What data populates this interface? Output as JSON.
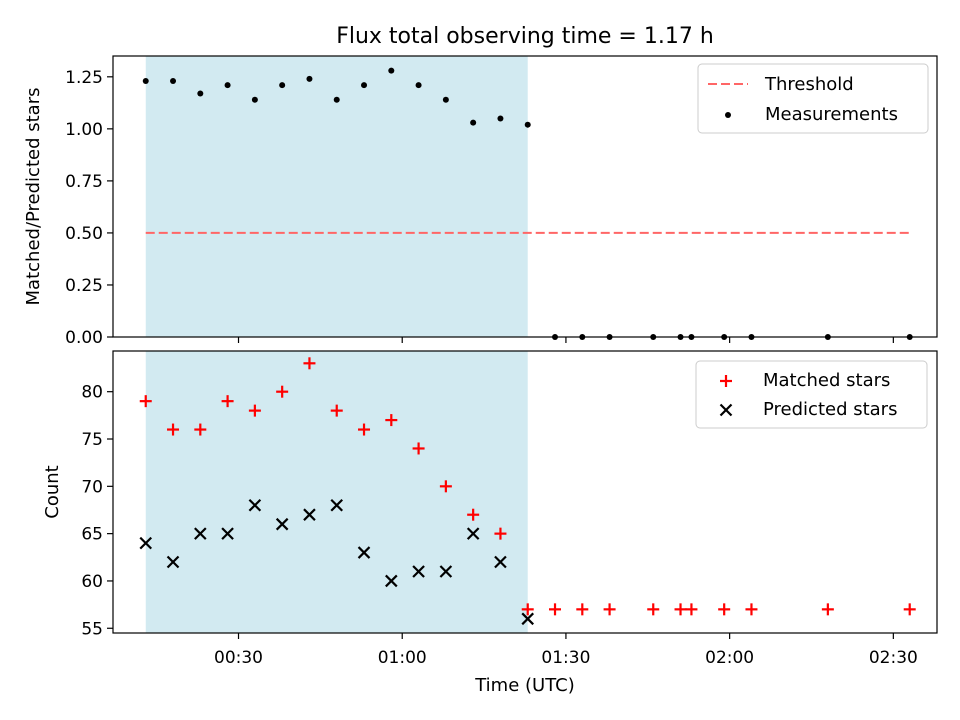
{
  "figure_title": "Flux total observing time = 1.17 h",
  "colors": {
    "shade": "#add8e6",
    "threshold": "#ff6666",
    "measurements": "#000000",
    "matched": "#ff0000",
    "predicted": "#000000"
  },
  "chart_data": [
    {
      "type": "scatter",
      "title": "Flux total observing time = 1.17 h",
      "xlabel": "",
      "ylabel": "Matched/Predicted stars",
      "xlim": [
        "00:07",
        "02:38"
      ],
      "ylim": [
        0,
        1.35
      ],
      "yticks": [
        "0.00",
        "0.25",
        "0.50",
        "0.75",
        "1.00",
        "1.25"
      ],
      "shaded_interval": [
        "00:13",
        "01:23"
      ],
      "legend_position": "upper right",
      "series": [
        {
          "name": "Threshold",
          "style": "dashed-line",
          "x": [
            "00:13",
            "02:33"
          ],
          "y": [
            0.5,
            0.5
          ]
        },
        {
          "name": "Measurements",
          "style": "dot",
          "x": [
            "00:13",
            "00:18",
            "00:23",
            "00:28",
            "00:33",
            "00:38",
            "00:43",
            "00:48",
            "00:53",
            "00:58",
            "01:03",
            "01:08",
            "01:13",
            "01:18",
            "01:23",
            "01:28",
            "01:33",
            "01:38",
            "01:46",
            "01:51",
            "01:53",
            "01:59",
            "02:04",
            "02:18",
            "02:33"
          ],
          "y": [
            1.23,
            1.23,
            1.17,
            1.21,
            1.14,
            1.21,
            1.24,
            1.14,
            1.21,
            1.28,
            1.21,
            1.14,
            1.03,
            1.05,
            1.02,
            0,
            0,
            0,
            0,
            0,
            0,
            0,
            0,
            0,
            0
          ]
        }
      ]
    },
    {
      "type": "scatter",
      "title": "",
      "xlabel": "Time (UTC)",
      "ylabel": "Count",
      "xlim": [
        "00:07",
        "02:38"
      ],
      "ylim": [
        54.5,
        84.3
      ],
      "xticks": [
        "00:30",
        "01:00",
        "01:30",
        "02:00",
        "02:30"
      ],
      "yticks": [
        "55",
        "60",
        "65",
        "70",
        "75",
        "80"
      ],
      "shaded_interval": [
        "00:13",
        "01:23"
      ],
      "legend_position": "upper right",
      "series": [
        {
          "name": "Matched stars",
          "marker": "plus",
          "x": [
            "00:13",
            "00:18",
            "00:23",
            "00:28",
            "00:33",
            "00:38",
            "00:43",
            "00:48",
            "00:53",
            "00:58",
            "01:03",
            "01:08",
            "01:13",
            "01:18",
            "01:23",
            "01:28",
            "01:33",
            "01:38",
            "01:46",
            "01:51",
            "01:53",
            "01:59",
            "02:04",
            "02:18",
            "02:33"
          ],
          "y": [
            79,
            76,
            76,
            79,
            78,
            80,
            83,
            78,
            76,
            77,
            74,
            70,
            67,
            65,
            57,
            57,
            57,
            57,
            57,
            57,
            57,
            57,
            57,
            57,
            57
          ]
        },
        {
          "name": "Predicted stars",
          "marker": "x",
          "x": [
            "00:13",
            "00:18",
            "00:23",
            "00:28",
            "00:33",
            "00:38",
            "00:43",
            "00:48",
            "00:53",
            "00:58",
            "01:03",
            "01:08",
            "01:13",
            "01:18",
            "01:23"
          ],
          "y": [
            64,
            62,
            65,
            65,
            68,
            66,
            67,
            68,
            63,
            60,
            61,
            61,
            65,
            62,
            56
          ]
        }
      ]
    }
  ]
}
